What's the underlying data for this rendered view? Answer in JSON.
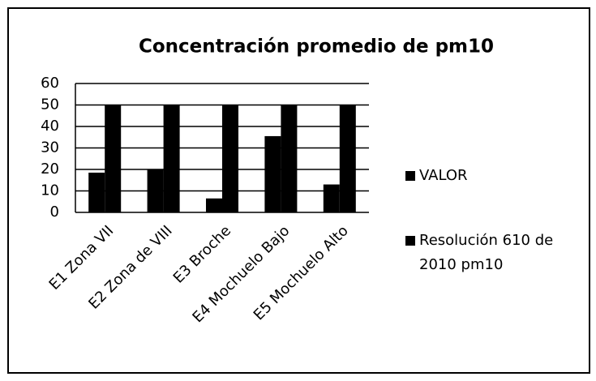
{
  "chart_data": {
    "type": "bar",
    "title": "Concentración promedio de pm10",
    "categories": [
      "E1 Zona VII",
      "E2 Zona de VIII",
      "E3 Broche",
      "E4 Mochuelo Bajo",
      "E5 Mochuelo Alto"
    ],
    "series": [
      {
        "name": "VALOR",
        "color": "#000000",
        "values": [
          18.5,
          20,
          6.5,
          35.5,
          13
        ]
      },
      {
        "name": "Resolución 610 de 2010 pm10",
        "color": "#000000",
        "values": [
          50,
          50,
          50,
          50,
          50
        ]
      }
    ],
    "ylim": [
      0,
      60
    ],
    "yticks": [
      0,
      10,
      20,
      30,
      40,
      50,
      60
    ],
    "grid": true,
    "legend": "right"
  }
}
